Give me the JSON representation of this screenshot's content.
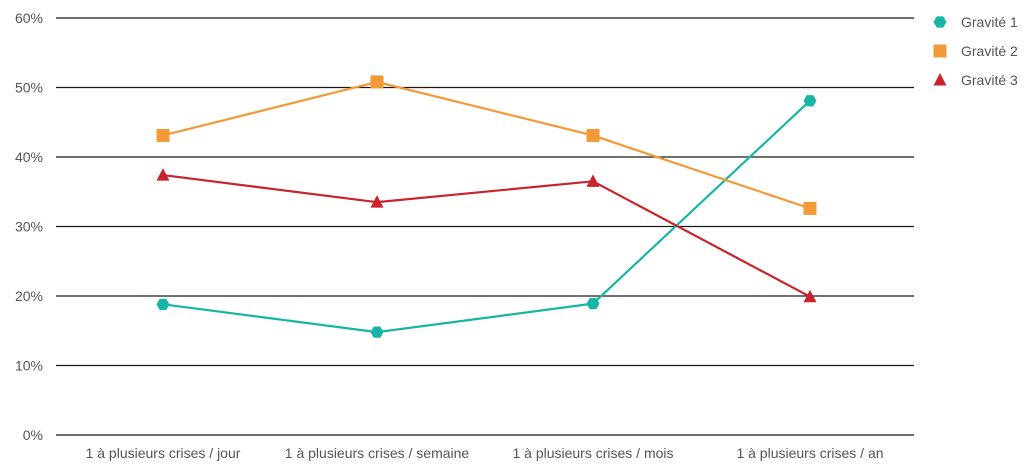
{
  "chart_data": {
    "type": "line",
    "categories": [
      "1 à plusieurs crises / jour",
      "1 à plusieurs crises / semaine",
      "1 à plusieurs crises / mois",
      "1 à plusieurs crises / an"
    ],
    "y_ticks": [
      "0%",
      "10%",
      "20%",
      "30%",
      "40%",
      "50%",
      "60%"
    ],
    "ylim": [
      0,
      60
    ],
    "grid": true,
    "legend_position": "top-right",
    "series": [
      {
        "name": "Gravité 1",
        "values": [
          18.8,
          14.8,
          18.9,
          48.1
        ],
        "color": "#18b5a6",
        "marker": "hexagon"
      },
      {
        "name": "Gravité 2",
        "values": [
          43.1,
          50.8,
          43.1,
          32.6
        ],
        "color": "#f29a38",
        "marker": "square"
      },
      {
        "name": "Gravité 3",
        "values": [
          37.4,
          33.5,
          36.5,
          19.9
        ],
        "color": "#c8242c",
        "marker": "triangle"
      }
    ]
  }
}
